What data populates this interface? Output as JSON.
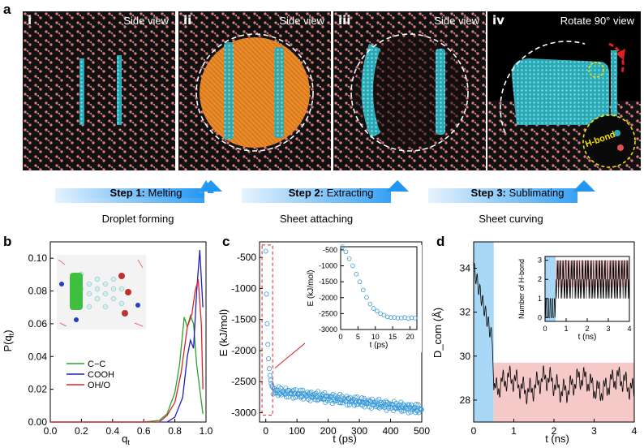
{
  "panel_a": {
    "letter": "a",
    "snapshots": [
      {
        "num": "i",
        "view": "Side view",
        "bg": "#0a0a0a"
      },
      {
        "num": "ii",
        "view": "Side view",
        "bg": "#0a0a0a"
      },
      {
        "num": "iii",
        "view": "Side view",
        "bg": "#0a0a0a"
      },
      {
        "num": "iv",
        "view": "Rotate 90° view",
        "bg": "#000000",
        "hbond_label": "H-bond"
      }
    ],
    "steps": [
      {
        "label": "Step 1:",
        "text": "Melting",
        "caption": "Droplet forming"
      },
      {
        "label": "Step 2:",
        "text": "Extracting",
        "caption": "Sheet attaching"
      },
      {
        "label": "Step 3:",
        "text": "Sublimating",
        "caption": "Sheet curving"
      }
    ]
  },
  "colors": {
    "green": "#2ca02c",
    "blue": "#1f1fbf",
    "red": "#d62728",
    "cyan_point": "#3b9ad9",
    "blue_shade": "#a8d8f5",
    "pink_shade": "#f6c9c9",
    "arrow_blue": "#2196f3"
  },
  "panel_b": {
    "letter": "b",
    "ylabel": "P(q",
    "ylabel_sub": "t",
    "xlabel": "q",
    "xlabel_sub": "t",
    "chart_data": {
      "type": "line",
      "xlim": [
        0.0,
        1.0
      ],
      "ylim": [
        0.0,
        0.11
      ],
      "xticks": [
        "0.0",
        "0.2",
        "0.4",
        "0.6",
        "0.8",
        "1.0"
      ],
      "yticks": [
        "0.00",
        "0.02",
        "0.04",
        "0.06",
        "0.08",
        "0.10"
      ],
      "series": [
        {
          "name": "C−C",
          "color": "#2ca02c",
          "x": [
            0.0,
            0.6,
            0.7,
            0.75,
            0.8,
            0.83,
            0.86,
            0.88,
            0.9,
            0.92,
            0.94,
            0.96,
            0.98
          ],
          "y": [
            0.0,
            0.0,
            0.001,
            0.005,
            0.018,
            0.035,
            0.064,
            0.058,
            0.065,
            0.06,
            0.035,
            0.02,
            0.005
          ]
        },
        {
          "name": "COOH",
          "color": "#1f1fbf",
          "x": [
            0.0,
            0.75,
            0.8,
            0.85,
            0.88,
            0.9,
            0.92,
            0.94,
            0.96,
            0.98
          ],
          "y": [
            0.0,
            0.0,
            0.003,
            0.015,
            0.04,
            0.05,
            0.045,
            0.08,
            0.105,
            0.07
          ]
        },
        {
          "name": "OH/O",
          "color": "#d62728",
          "x": [
            0.0,
            0.7,
            0.75,
            0.8,
            0.84,
            0.88,
            0.91,
            0.93,
            0.95,
            0.97,
            0.98
          ],
          "y": [
            0.0,
            0.0,
            0.004,
            0.012,
            0.03,
            0.058,
            0.066,
            0.08,
            0.087,
            0.06,
            0.02
          ]
        }
      ]
    }
  },
  "panel_c": {
    "letter": "c",
    "ylabel": "E (kJ/mol)",
    "xlabel": "t (ps)",
    "chart_data": {
      "type": "scatter",
      "xlim": [
        -20,
        500
      ],
      "ylim": [
        -3150,
        -250
      ],
      "xticks": [
        "0",
        "100",
        "200",
        "300",
        "400",
        "500"
      ],
      "yticks": [
        "-500",
        "-1000",
        "-1500",
        "-2000",
        "-2500",
        "-3000"
      ],
      "series": [
        {
          "name": "",
          "x_range": [
            0,
            500
          ],
          "start": -400,
          "plateau": -2650,
          "end": -2950
        }
      ],
      "inset": {
        "xlabel": "t (ps)",
        "ylabel": "E (kJ/mol)",
        "xlim": [
          0,
          22
        ],
        "ylim": [
          -3000,
          -400
        ],
        "xticks": [
          "0",
          "5",
          "10",
          "15",
          "20"
        ],
        "yticks": [
          "-500",
          "-1000",
          "-1500",
          "-2000",
          "-2500",
          "-3000"
        ],
        "x": [
          0.5,
          1.5,
          2.5,
          3.5,
          4.5,
          5.5,
          6.5,
          7.5,
          8.5,
          9.5,
          10.5,
          11.5,
          12.5,
          13.5,
          14.5,
          15.5,
          16.5,
          17.5,
          18.5,
          19.5,
          20.5,
          21.5
        ],
        "y": [
          -400,
          -560,
          -780,
          -1000,
          -1260,
          -1500,
          -1760,
          -1990,
          -2200,
          -2340,
          -2420,
          -2500,
          -2550,
          -2600,
          -2620,
          -2620,
          -2640,
          -2640,
          -2620,
          -2650,
          -2630,
          -2640
        ]
      }
    }
  },
  "panel_d": {
    "letter": "d",
    "ylabel": "D_com (Å)",
    "xlabel": "t (ns)",
    "chart_data": {
      "type": "line",
      "xlim": [
        0,
        4
      ],
      "ylim": [
        27,
        35.2
      ],
      "xticks": [
        "0",
        "1",
        "2",
        "3",
        "4"
      ],
      "yticks": [
        "28",
        "30",
        "32",
        "34"
      ],
      "shade_split": 0.5,
      "series": [
        {
          "name": "",
          "start": 34.0,
          "drop_to": 28.6,
          "mean": 28.7
        }
      ],
      "inset": {
        "xlabel": "t (ns)",
        "ylabel": "Number of H-bond",
        "xlim": [
          0,
          4
        ],
        "ylim": [
          -0.2,
          3.2
        ],
        "xticks": [
          "0",
          "1",
          "2",
          "3",
          "4"
        ],
        "yticks": [
          "0",
          "1",
          "2",
          "3"
        ]
      }
    }
  }
}
